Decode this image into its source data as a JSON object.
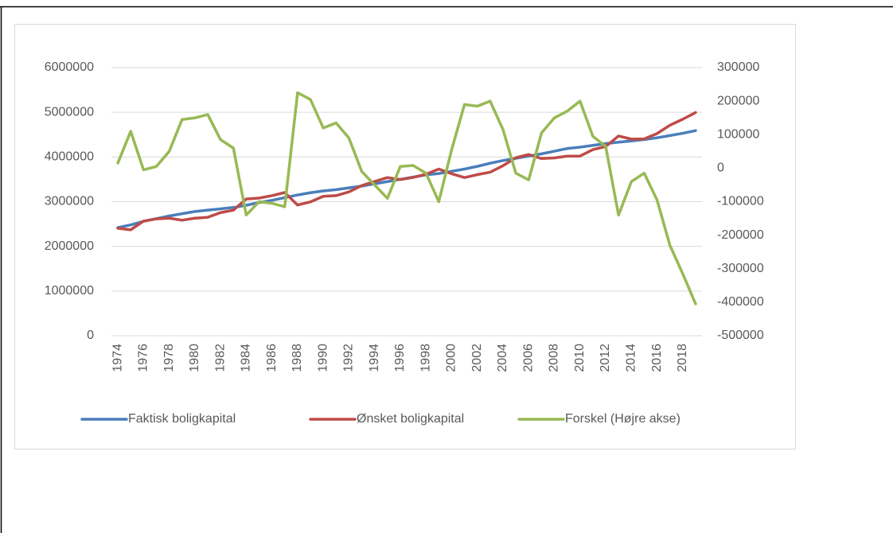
{
  "chart_data": {
    "type": "line",
    "categories": [
      "1974",
      null,
      "1976",
      null,
      "1978",
      null,
      "1980",
      null,
      "1982",
      null,
      "1984",
      null,
      "1986",
      null,
      "1988",
      null,
      "1990",
      null,
      "1992",
      null,
      "1994",
      null,
      "1996",
      null,
      "1998",
      null,
      "2000",
      null,
      "2002",
      null,
      "2004",
      null,
      "2006",
      null,
      "2008",
      null,
      "2010",
      null,
      "2012",
      null,
      "2014",
      null,
      "2016",
      null,
      "2018",
      null
    ],
    "series": [
      {
        "name": "Faktisk boligkapital",
        "color": "#4a7ebb",
        "axis": "y",
        "values": [
          2420000,
          2480000,
          2560000,
          2620000,
          2680000,
          2730000,
          2780000,
          2810000,
          2840000,
          2870000,
          2920000,
          2980000,
          3030000,
          3090000,
          3150000,
          3200000,
          3240000,
          3270000,
          3310000,
          3350000,
          3400000,
          3450000,
          3500000,
          3550000,
          3600000,
          3630000,
          3680000,
          3730000,
          3790000,
          3860000,
          3920000,
          3970000,
          4020000,
          4070000,
          4130000,
          4190000,
          4220000,
          4260000,
          4300000,
          4330000,
          4360000,
          4390000,
          4430000,
          4480000,
          4530000,
          4590000
        ]
      },
      {
        "name": "Ønsket boligkapital",
        "color": "#be4b48",
        "axis": "y",
        "values": [
          2405000,
          2370000,
          2565000,
          2615000,
          2630000,
          2585000,
          2630000,
          2650000,
          2755000,
          2810000,
          3060000,
          3080000,
          3135000,
          3205000,
          2925000,
          2995000,
          3120000,
          3135000,
          3220000,
          3360000,
          3450000,
          3540000,
          3495000,
          3542000,
          3615000,
          3730000,
          3625000,
          3540000,
          3605000,
          3660000,
          3805000,
          3985000,
          4055000,
          3965000,
          3980000,
          4020000,
          4020000,
          4165000,
          4235000,
          4470000,
          4400000,
          4405000,
          4525000,
          4710000,
          4845000,
          4995000
        ]
      },
      {
        "name": "Forskel (Højre akse)",
        "color": "#98b954",
        "axis": "y2",
        "values": [
          15000,
          110000,
          -5000,
          5000,
          50000,
          145000,
          150000,
          160000,
          85000,
          60000,
          -140000,
          -100000,
          -105000,
          -115000,
          225000,
          205000,
          120000,
          135000,
          90000,
          -10000,
          -50000,
          -90000,
          5000,
          8000,
          -15000,
          -100000,
          55000,
          190000,
          185000,
          200000,
          115000,
          -15000,
          -35000,
          105000,
          150000,
          170000,
          200000,
          95000,
          65000,
          -140000,
          -40000,
          -15000,
          -95000,
          -230000,
          -315000,
          -405000
        ]
      }
    ],
    "ylim": [
      0,
      6000000
    ],
    "yticks": [
      0,
      1000000,
      2000000,
      3000000,
      4000000,
      5000000,
      6000000
    ],
    "y2lim": [
      -500000,
      300000
    ],
    "y2ticks": [
      -500000,
      -400000,
      -300000,
      -200000,
      -100000,
      0,
      100000,
      200000,
      300000
    ],
    "grid": true,
    "legend": "bottom"
  }
}
